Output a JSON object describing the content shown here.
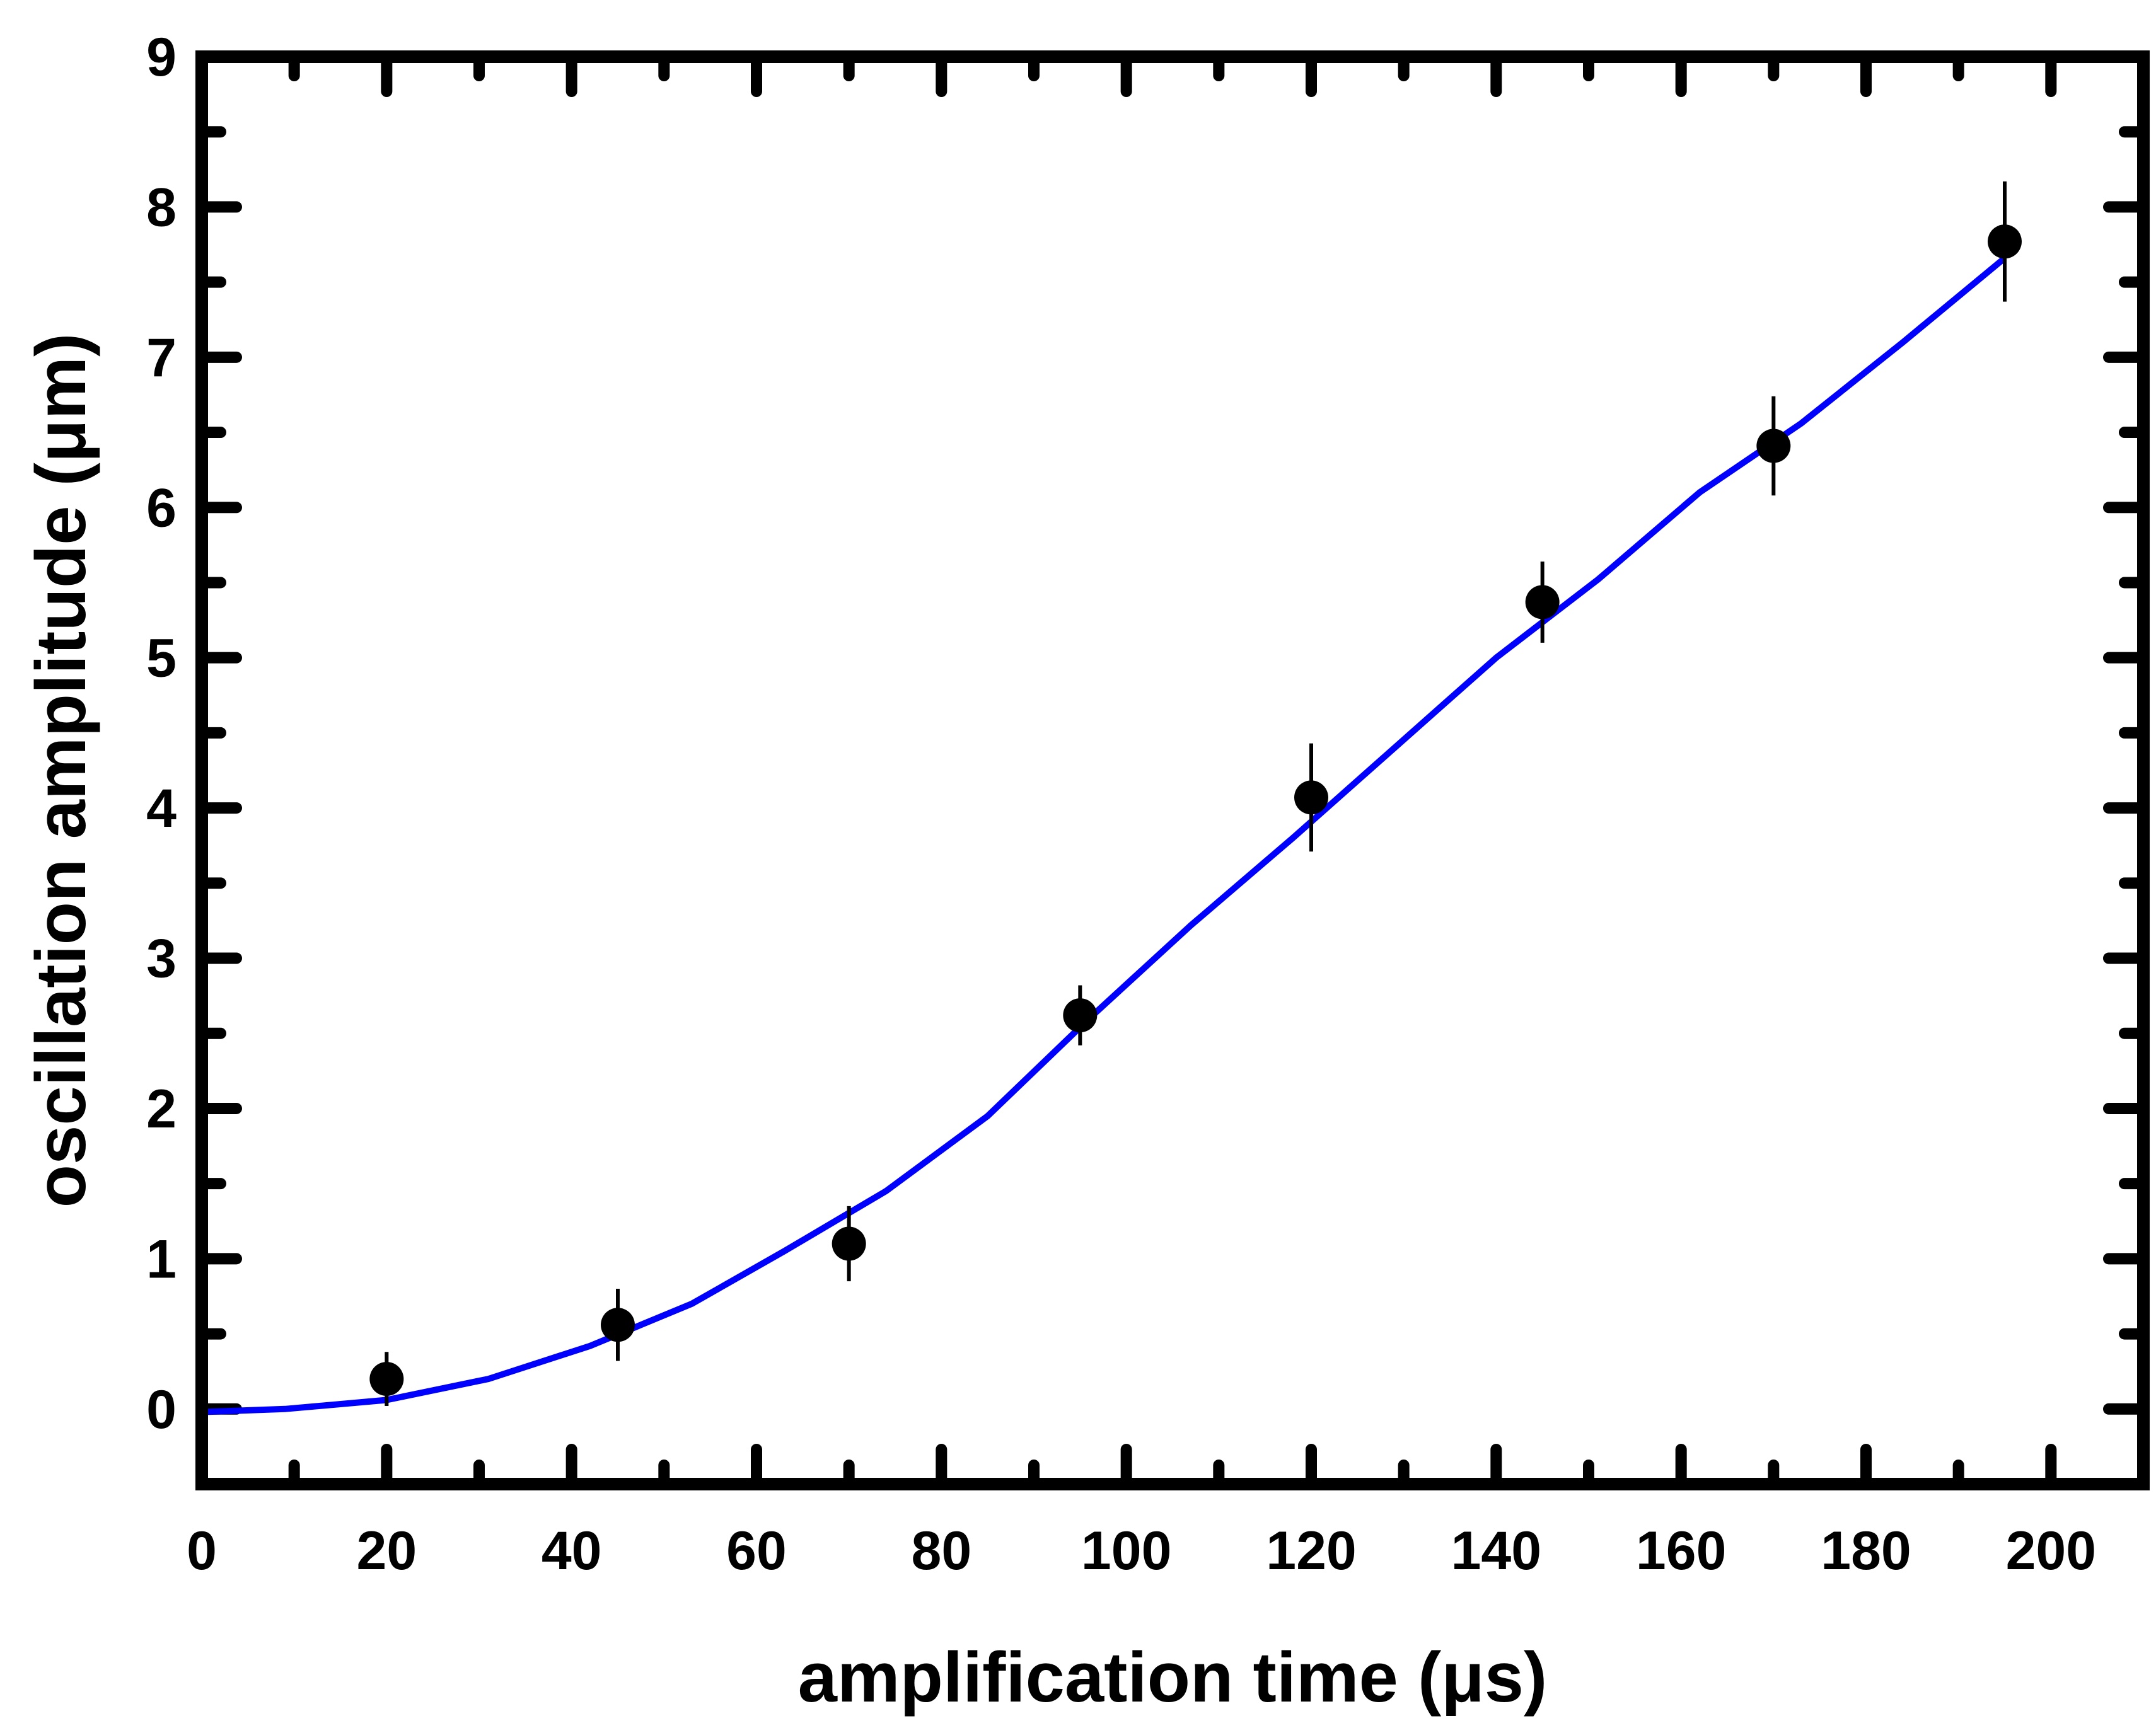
{
  "chart_data": {
    "type": "scatter",
    "title": "",
    "xlabel": "amplification time (μs)",
    "ylabel": "oscillation amplitude (μm)",
    "xlim": [
      0,
      210
    ],
    "ylim": [
      -0.5,
      9
    ],
    "xticks": [
      0,
      20,
      40,
      60,
      80,
      100,
      120,
      140,
      160,
      180,
      200
    ],
    "yticks": [
      0,
      1,
      2,
      3,
      4,
      5,
      6,
      7,
      8,
      9
    ],
    "grid": false,
    "legend": "none",
    "series": [
      {
        "kind": "points-with-error-bars",
        "color": "#000000",
        "x": [
          20,
          45,
          70,
          95,
          120,
          145,
          170,
          195
        ],
        "y": [
          0.2,
          0.56,
          1.1,
          2.62,
          4.07,
          5.37,
          6.41,
          7.77
        ],
        "yerr": [
          0.18,
          0.24,
          0.25,
          0.2,
          0.36,
          0.27,
          0.33,
          0.4
        ]
      },
      {
        "kind": "line",
        "color": "#0000ff",
        "x": [
          0,
          9,
          20,
          31,
          42,
          53,
          63,
          74,
          85,
          96,
          107,
          118,
          129,
          140,
          151,
          162,
          173,
          184,
          195
        ],
        "y": [
          -0.02,
          0.0,
          0.06,
          0.2,
          0.42,
          0.7,
          1.05,
          1.45,
          1.95,
          2.6,
          3.22,
          3.8,
          4.4,
          5.0,
          5.52,
          6.1,
          6.56,
          7.1,
          7.66
        ]
      }
    ]
  }
}
